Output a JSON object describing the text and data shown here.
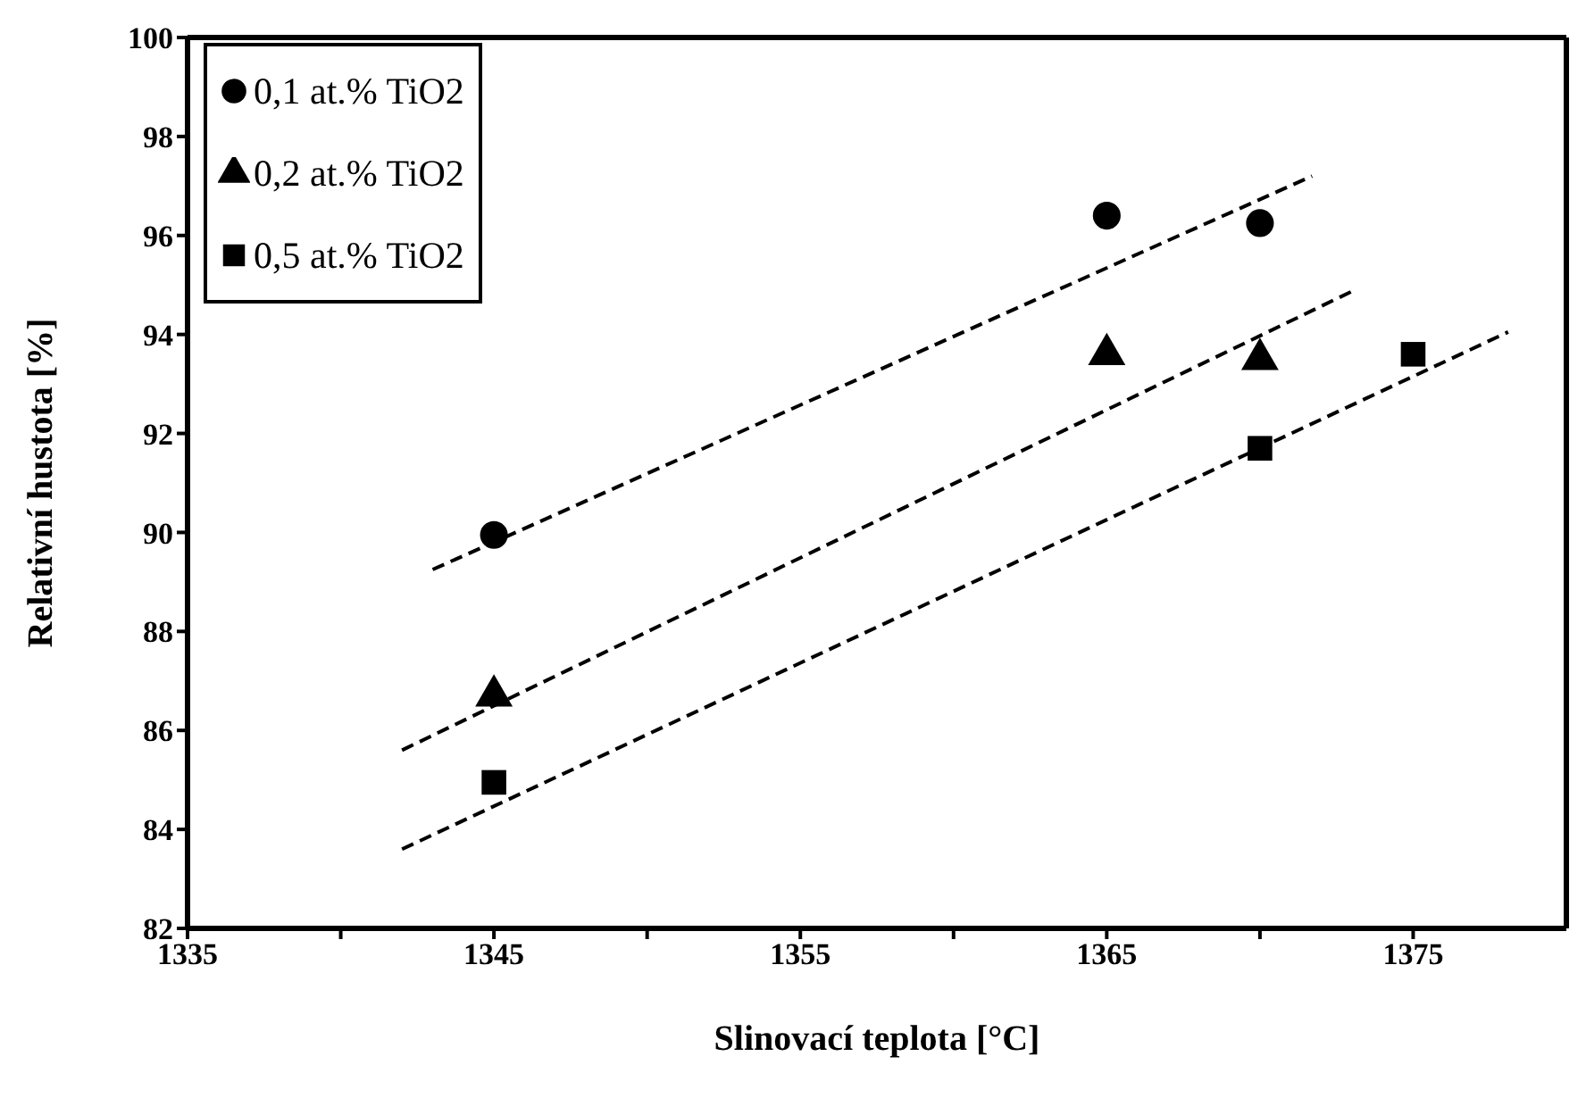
{
  "chart_data": {
    "type": "scatter",
    "xlabel": "Slinovací teplota [°C]",
    "ylabel": "Relativní hustota [%]",
    "xlim": [
      1335,
      1380
    ],
    "xticks": [
      1335,
      {
        "value": 1340,
        "label": null
      },
      1345,
      {
        "value": 1350,
        "label": null
      },
      1355,
      {
        "value": 1360,
        "label": null
      },
      1365,
      {
        "value": 1370,
        "label": null
      },
      1375
    ],
    "ylim": [
      82,
      100
    ],
    "yticks": [
      82,
      84,
      86,
      88,
      90,
      92,
      94,
      96,
      98,
      100
    ],
    "legend": "top left",
    "series": [
      {
        "name": "0,1 at.% TiO2",
        "color": "#000000",
        "marker": "circle",
        "x": [
          1345,
          1365,
          1370
        ],
        "values": [
          89.95,
          96.4,
          96.25
        ]
      },
      {
        "name": "0,2 at.% TiO2",
        "color": "#000000",
        "marker": "triangle",
        "x": [
          1345,
          1365,
          1370
        ],
        "values": [
          86.7,
          93.6,
          93.5
        ]
      },
      {
        "name": "0,5 at.% TiO2",
        "color": "#000000",
        "marker": "square",
        "x": [
          1345,
          1370,
          1375
        ],
        "values": [
          84.95,
          91.7,
          93.6
        ]
      },
      {
        "type": "line",
        "color": "#000000",
        "marker": "none",
        "line_style": "dashed",
        "x": [
          1343.0,
          1371.7
        ],
        "values": [
          89.25,
          97.2
        ]
      },
      {
        "type": "line",
        "color": "#000000",
        "marker": "none",
        "line_style": "dashed",
        "x": [
          1342.0,
          1373.1
        ],
        "values": [
          85.6,
          94.9
        ]
      },
      {
        "type": "line",
        "color": "#000000",
        "marker": "none",
        "line_style": "dashed",
        "x": [
          1342.0,
          1378.1
        ],
        "values": [
          83.6,
          94.05
        ]
      }
    ]
  }
}
